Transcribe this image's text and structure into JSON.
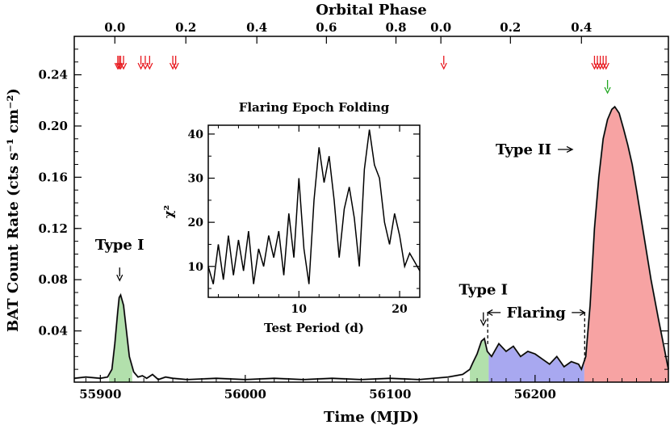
{
  "chart_data": {
    "type": "area",
    "xlabel": "Time (MJD)",
    "ylabel": "BAT Count Rate (cts s⁻¹ cm⁻²)",
    "top_axis_label": "Orbital Phase",
    "xlim": [
      55882,
      56292
    ],
    "ylim": [
      0,
      0.27
    ],
    "x_ticks": [
      "55900",
      "56000",
      "56100",
      "56200"
    ],
    "y_ticks": [
      "0.04",
      "0.08",
      "0.12",
      "0.16",
      "0.20",
      "0.24"
    ],
    "top_ticks": [
      {
        "mjd": 55910,
        "label": "0.0"
      },
      {
        "mjd": 55959,
        "label": "0.2"
      },
      {
        "mjd": 56008,
        "label": "0.4"
      },
      {
        "mjd": 56056,
        "label": "0.6"
      },
      {
        "mjd": 56104,
        "label": "0.8"
      },
      {
        "mjd": 56135,
        "label": "0.0"
      },
      {
        "mjd": 56183,
        "label": "0.2"
      },
      {
        "mjd": 56232,
        "label": "0.4"
      }
    ],
    "series": [
      {
        "x": [
          55882,
          55890,
          55900,
          55905,
          55908,
          55910,
          55912,
          55913,
          55914,
          55916,
          55918,
          55920,
          55923,
          55926,
          55929,
          55932,
          55936,
          55940,
          55945,
          55950,
          55960,
          55980,
          56000,
          56020,
          56040,
          56060,
          56080,
          56100,
          56120,
          56140,
          56150,
          56155,
          56157,
          56160,
          56163,
          56165,
          56167,
          56170,
          56175,
          56180,
          56185,
          56190,
          56195,
          56200,
          56205,
          56210,
          56215,
          56220,
          56225,
          56230,
          56232,
          56235,
          56238,
          56241,
          56244,
          56247,
          56250,
          56253,
          56255,
          56258,
          56261,
          56264,
          56267,
          56270,
          56275,
          56280,
          56285,
          56292
        ],
        "y": [
          0.003,
          0.004,
          0.003,
          0.004,
          0.01,
          0.03,
          0.055,
          0.066,
          0.068,
          0.06,
          0.04,
          0.02,
          0.008,
          0.004,
          0.005,
          0.003,
          0.006,
          0.002,
          0.004,
          0.003,
          0.002,
          0.003,
          0.002,
          0.003,
          0.002,
          0.003,
          0.002,
          0.003,
          0.002,
          0.004,
          0.006,
          0.01,
          0.015,
          0.022,
          0.032,
          0.034,
          0.024,
          0.02,
          0.03,
          0.024,
          0.028,
          0.02,
          0.024,
          0.022,
          0.018,
          0.014,
          0.02,
          0.012,
          0.016,
          0.014,
          0.01,
          0.02,
          0.06,
          0.12,
          0.16,
          0.19,
          0.205,
          0.213,
          0.215,
          0.21,
          0.198,
          0.185,
          0.17,
          0.15,
          0.115,
          0.08,
          0.05,
          0.01
        ]
      }
    ],
    "shaded_regions": [
      {
        "name": "Type I",
        "x_range": [
          55906,
          55922
        ],
        "color": "#b2e0ac"
      },
      {
        "name": "Type I",
        "x_range": [
          56155,
          56168
        ],
        "color": "#b2e0ac"
      },
      {
        "name": "Flaring",
        "x_range": [
          56168,
          56234
        ],
        "color": "#a8a8f0"
      },
      {
        "name": "Type II",
        "x_range": [
          56234,
          56292
        ],
        "color": "#f7a3a3"
      }
    ],
    "annotations": [
      {
        "text": "Type I",
        "mjd": 55915,
        "rate": 0.075
      },
      {
        "text": "Type I",
        "mjd": 56166,
        "rate": 0.04
      },
      {
        "text": "Type II",
        "mjd": 56238,
        "rate": 0.2
      },
      {
        "text": "Flaring",
        "mjd_range": [
          56169,
          56232
        ],
        "rate": 0.06
      }
    ],
    "red_arrows_mjd": [
      55912,
      55913,
      55914,
      55916,
      55928,
      55931,
      55934,
      55950,
      55952,
      56137,
      56241,
      56243,
      56245,
      56247,
      56249
    ],
    "green_arrows_mjd": [
      56250
    ],
    "inset": {
      "title": "Flaring Epoch Folding",
      "xlabel": "Test Period (d)",
      "ylabel": "χ²",
      "xlim": [
        1,
        22
      ],
      "ylim": [
        3,
        42
      ],
      "x_ticks": [
        "10",
        "20"
      ],
      "y_ticks": [
        "10",
        "20",
        "30",
        "40"
      ],
      "x": [
        1.0,
        1.5,
        2.0,
        2.5,
        3.0,
        3.5,
        4.0,
        4.5,
        5.0,
        5.5,
        6.0,
        6.5,
        7.0,
        7.5,
        8.0,
        8.5,
        9.0,
        9.5,
        10.0,
        10.5,
        11.0,
        11.5,
        12.0,
        12.5,
        13.0,
        13.5,
        14.0,
        14.5,
        15.0,
        15.5,
        16.0,
        16.5,
        17.0,
        17.5,
        18.0,
        18.5,
        19.0,
        19.5,
        20.0,
        20.5,
        21.0,
        21.5,
        22.0
      ],
      "y": [
        10,
        6,
        15,
        7,
        17,
        8,
        16,
        9,
        18,
        6,
        14,
        10,
        17,
        12,
        18,
        8,
        22,
        12,
        30,
        14,
        6,
        25,
        37,
        29,
        35,
        25,
        12,
        23,
        28,
        21,
        10,
        32,
        41,
        33,
        30,
        20,
        15,
        22,
        17,
        10,
        13,
        11,
        9
      ]
    }
  }
}
